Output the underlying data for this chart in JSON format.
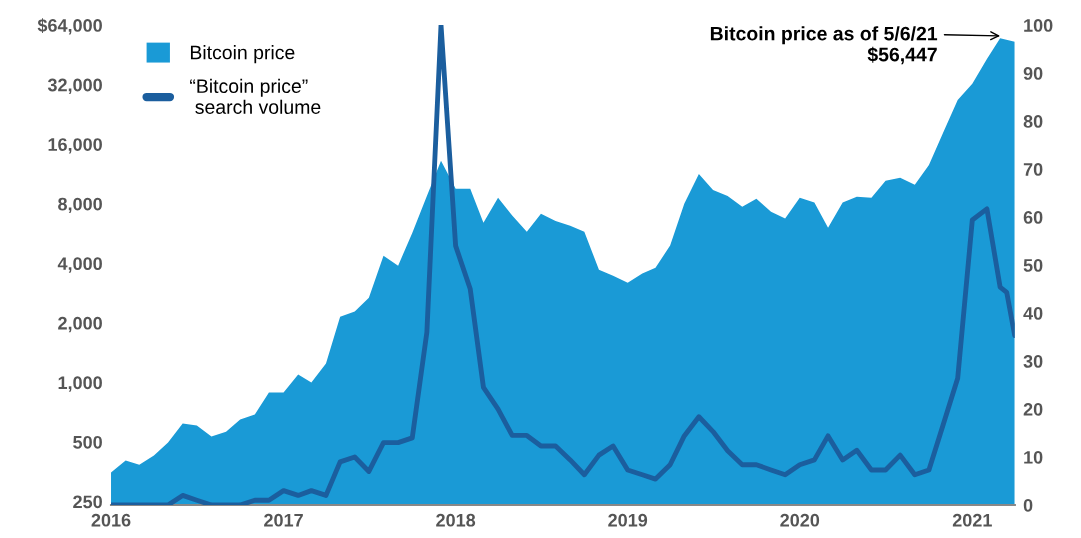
{
  "chart_data": {
    "type": "area",
    "x": [
      "2016-01",
      "2016-02",
      "2016-03",
      "2016-04",
      "2016-05",
      "2016-06",
      "2016-07",
      "2016-08",
      "2016-09",
      "2016-10",
      "2016-11",
      "2016-12",
      "2017-01",
      "2017-02",
      "2017-03",
      "2017-04",
      "2017-05",
      "2017-06",
      "2017-07",
      "2017-08",
      "2017-09",
      "2017-10",
      "2017-11",
      "2017-12",
      "2018-01",
      "2018-02",
      "2018-03",
      "2018-04",
      "2018-05",
      "2018-06",
      "2018-07",
      "2018-08",
      "2018-09",
      "2018-10",
      "2018-11",
      "2018-12",
      "2019-01",
      "2019-02",
      "2019-03",
      "2019-04",
      "2019-05",
      "2019-06",
      "2019-07",
      "2019-08",
      "2019-09",
      "2019-10",
      "2019-11",
      "2019-12",
      "2020-01",
      "2020-02",
      "2020-03",
      "2020-04",
      "2020-05",
      "2020-06",
      "2020-07",
      "2020-08",
      "2020-09",
      "2020-10",
      "2020-11",
      "2020-12",
      "2021-01",
      "2021-02",
      "2021-03",
      "2021-04"
    ],
    "series": [
      {
        "name": "Bitcoin price",
        "color": "#1a9ad6",
        "values": [
          350,
          403,
          384,
          427,
          497,
          620,
          606,
          533,
          563,
          650,
          688,
          889,
          889,
          1095,
          1000,
          1245,
          2150,
          2280,
          2680,
          4370,
          3890,
          5700,
          8760,
          13200,
          9520,
          9520,
          6420,
          8580,
          6970,
          5780,
          7120,
          6550,
          6190,
          5780,
          3710,
          3460,
          3190,
          3550,
          3800,
          4920,
          8000,
          11300,
          9400,
          8760,
          7730,
          8470,
          7300,
          6730,
          8580,
          8110,
          6060,
          8110,
          8690,
          8580,
          10450,
          10820,
          9970,
          12580,
          18500,
          26800,
          32300,
          43100,
          55000,
          52700
        ]
      },
      {
        "name": "“Bitcoin price”\n search volume",
        "type": "line",
        "axis": "y2",
        "color": "#1b5e9e",
        "x": [
          "2016-01",
          "2016-02",
          "2016-03",
          "2016-04",
          "2016-05",
          "2016-06",
          "2016-07",
          "2016-08",
          "2016-09",
          "2016-10",
          "2016-11",
          "2016-12",
          "2017-01",
          "2017-02",
          "2017-03",
          "2017-04",
          "2017-05",
          "2017-06",
          "2017-07",
          "2017-08",
          "2017-09",
          "2017-10",
          "2017-11",
          "2017-12",
          "2018-01",
          "2018-02",
          "2018-03",
          "2018-04",
          "2018-05",
          "2018-06",
          "2018-07",
          "2018-08",
          "2018-09",
          "2018-10",
          "2018-11",
          "2018-12",
          "2019-01",
          "2019-02",
          "2019-03",
          "2019-04",
          "2019-05",
          "2019-06",
          "2019-07",
          "2019-08",
          "2019-09",
          "2019-10",
          "2019-11",
          "2019-12",
          "2020-01",
          "2020-02",
          "2020-03",
          "2020-04",
          "2020-05",
          "2020-06",
          "2020-07",
          "2020-08",
          "2020-09",
          "2020-10",
          "2020-11",
          "2020-12",
          "2021-01",
          "2021-02",
          "2021-03",
          "2021-03-15",
          "2021-04"
        ],
        "values": [
          0,
          0,
          0,
          0,
          0,
          2,
          1,
          0,
          0,
          0,
          1,
          1,
          3,
          2,
          3,
          2,
          9,
          10,
          7,
          13,
          13,
          14,
          36,
          100,
          54,
          45,
          24.5,
          20,
          14.5,
          14.5,
          12.3,
          12.3,
          9.4,
          6.3,
          10.4,
          12.3,
          7.3,
          6.3,
          5.4,
          8.4,
          14.4,
          18.4,
          15.3,
          11.3,
          8.4,
          8.4,
          7.3,
          6.3,
          8.4,
          9.4,
          14.4,
          9.4,
          11.4,
          7.3,
          7.3,
          10.4,
          6.3,
          7.3,
          17,
          26.4,
          59.4,
          61.7,
          45.4,
          44.3,
          35.3
        ]
      }
    ],
    "log": true,
    "xlim": [
      "2016-01",
      "2021-04"
    ],
    "xticks": [
      {
        "value": "2016",
        "label": "2016"
      },
      {
        "value": "2017",
        "label": "2017"
      },
      {
        "value": "2018",
        "label": "2018"
      },
      {
        "value": "2019",
        "label": "2019"
      },
      {
        "value": "2020",
        "label": "2020"
      },
      {
        "value": "2021",
        "label": "2021"
      }
    ],
    "ylim": [
      240,
      64000
    ],
    "yticks": [
      250,
      500,
      {
        "value": 1000,
        "label": "1,000"
      },
      {
        "value": 2000,
        "label": "2,000"
      },
      {
        "value": 4000,
        "label": "4,000"
      },
      {
        "value": 8000,
        "label": "8,000"
      },
      {
        "value": 16000,
        "label": "16,000"
      },
      {
        "value": 32000,
        "label": "32,000"
      },
      {
        "value": 64000,
        "label": "$64,000"
      }
    ],
    "y2lim": [
      0,
      100
    ],
    "y2ticks": [
      0,
      10,
      20,
      30,
      40,
      50,
      60,
      70,
      80,
      90,
      100
    ],
    "legend": "top left",
    "grid": false,
    "annotations": [
      {
        "text": "Bitcoin price as of 5/6/21\n$56,447",
        "x": "2021-03",
        "y": 56447
      }
    ]
  }
}
